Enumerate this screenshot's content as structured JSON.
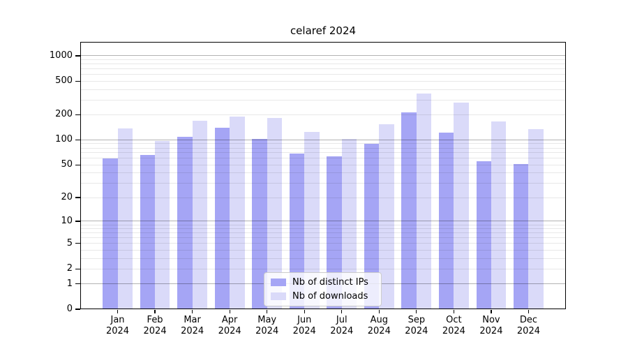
{
  "title": "celaref 2024",
  "colors": {
    "ips": "#a5a5f5",
    "downloads": "#dadaf9",
    "grid_major": "rgba(0,0,0,0.30)",
    "grid_minor": "rgba(0,0,0,0.09)",
    "axis": "#000000"
  },
  "legend": {
    "items": [
      {
        "label": "Nb of distinct IPs",
        "series": "ips"
      },
      {
        "label": "Nb of downloads",
        "series": "downloads"
      }
    ],
    "position": "lower center"
  },
  "y_axis": {
    "tick_labels": [
      "1000",
      "500",
      "200",
      "100",
      "50",
      "20",
      "10",
      "5",
      "2",
      "1",
      "0"
    ]
  },
  "x_axis": {
    "months": [
      "Jan",
      "Feb",
      "Mar",
      "Apr",
      "May",
      "Jun",
      "Jul",
      "Aug",
      "Sep",
      "Oct",
      "Nov",
      "Dec"
    ],
    "year": "2024"
  },
  "chart_data": {
    "type": "bar",
    "title": "celaref 2024",
    "categories": [
      "Jan 2024",
      "Feb 2024",
      "Mar 2024",
      "Apr 2024",
      "May 2024",
      "Jun 2024",
      "Jul 2024",
      "Aug 2024",
      "Sep 2024",
      "Oct 2024",
      "Nov 2024",
      "Dec 2024"
    ],
    "series": [
      {
        "name": "Nb of distinct IPs",
        "color_key": "ips",
        "values": [
          60,
          66,
          110,
          140,
          102,
          68,
          63,
          90,
          215,
          122,
          56,
          51
        ]
      },
      {
        "name": "Nb of downloads",
        "color_key": "downloads",
        "values": [
          138,
          98,
          170,
          191,
          182,
          124,
          103,
          155,
          355,
          278,
          165,
          134
        ]
      }
    ],
    "yscale": "log1p",
    "yticks": [
      1000,
      500,
      200,
      100,
      50,
      20,
      10,
      5,
      2,
      1,
      0
    ],
    "ylim": [
      0,
      1500
    ],
    "xlabel": "",
    "ylabel": "",
    "grid": true,
    "grid_above_bars": true,
    "legend_position": "lower center"
  }
}
